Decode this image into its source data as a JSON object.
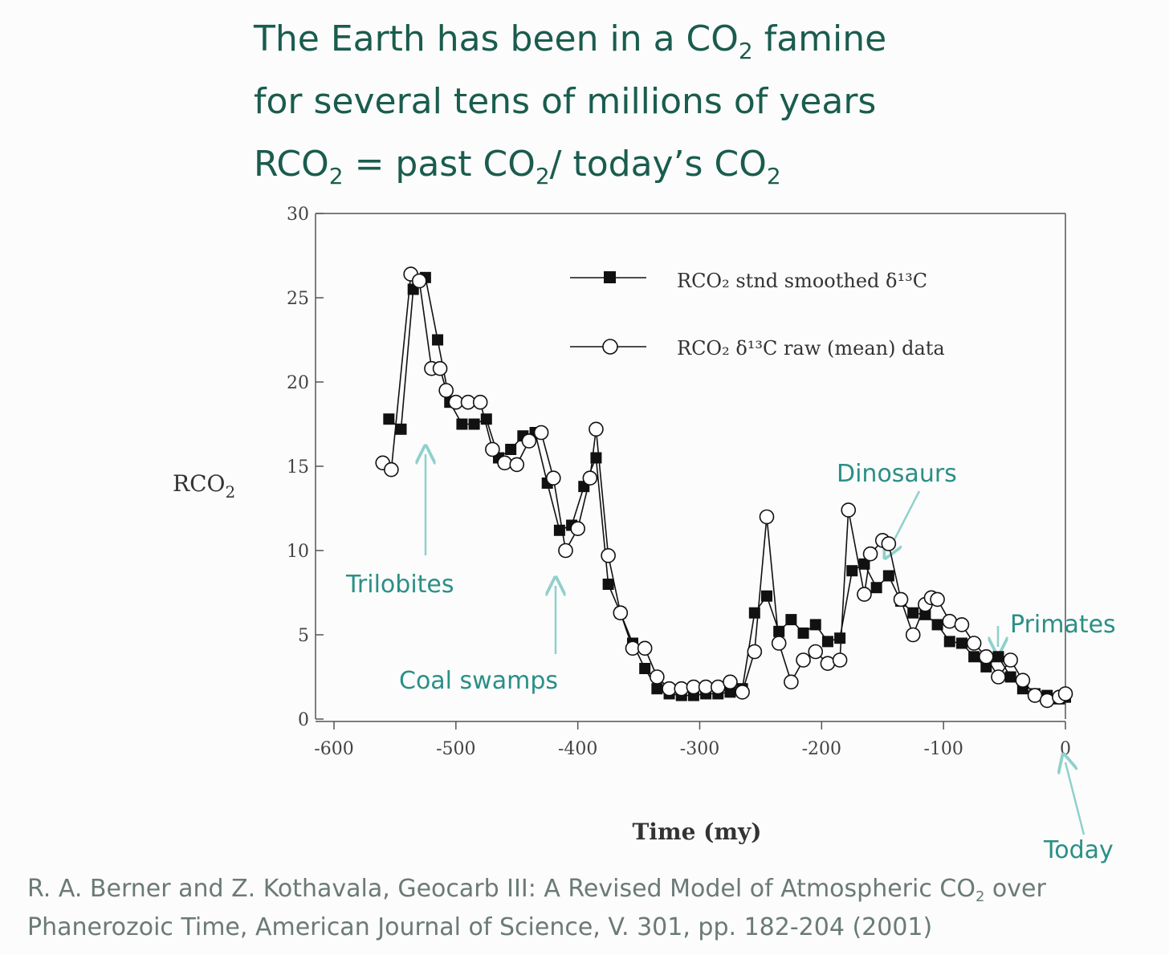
{
  "slide": {
    "title_line1_a": "The Earth has been in a CO",
    "title_line1_sub": "2",
    "title_line1_b": " famine",
    "title_line2": "for several tens of millions of years",
    "title_line3_a": "RCO",
    "title_line3_sub1": "2",
    "title_line3_b": " = past CO",
    "title_line3_sub2": "2",
    "title_line3_c": "/ today’s CO",
    "title_line3_sub3": "2",
    "citation_line1_a": "R. A. Berner and Z. Kothavala, Geocarb III: A Revised Model of Atmospheric CO",
    "citation_line1_sub": "2",
    "citation_line1_b": " over",
    "citation_line2": "Phanerozoic Time,  American Journal of Science, V. 301, pp. 182-204 (2001)"
  },
  "colors": {
    "title": "#1a5c4e",
    "annotation": "#2a8f87",
    "arrow": "#8fd0cc",
    "axis": "#555555",
    "data": "#111111"
  },
  "chart_data": {
    "type": "line",
    "xlabel": "Time  (my)",
    "ylabel": "RCO",
    "ylabel_sub": "2",
    "xlim": [
      -600,
      0
    ],
    "ylim": [
      0,
      30
    ],
    "x_ticks": [
      -600,
      -500,
      -400,
      -300,
      -200,
      -100,
      0
    ],
    "x_tick_labels": [
      "-600",
      "-500",
      "-400",
      "-300",
      "-200",
      "-100",
      "0"
    ],
    "y_ticks": [
      0,
      5,
      10,
      15,
      20,
      25,
      30
    ],
    "y_tick_labels": [
      "0",
      "5",
      "10",
      "15",
      "20",
      "25",
      "30"
    ],
    "grid": false,
    "legend_position": "top-right",
    "series": [
      {
        "name": "RCO₂ stnd smoothed δ¹³C",
        "marker": "filled-square",
        "x": [
          -555,
          -545,
          -535,
          -525,
          -515,
          -505,
          -495,
          -485,
          -475,
          -465,
          -455,
          -445,
          -435,
          -425,
          -415,
          -405,
          -395,
          -385,
          -375,
          -365,
          -355,
          -345,
          -335,
          -325,
          -315,
          -305,
          -295,
          -285,
          -275,
          -265,
          -255,
          -245,
          -235,
          -225,
          -215,
          -205,
          -195,
          -185,
          -175,
          -165,
          -155,
          -145,
          -135,
          -125,
          -115,
          -105,
          -95,
          -85,
          -75,
          -65,
          -55,
          -45,
          -35,
          -25,
          -15,
          -5,
          0
        ],
        "y": [
          17.8,
          17.2,
          25.5,
          26.2,
          22.5,
          18.8,
          17.5,
          17.5,
          17.8,
          15.5,
          16.0,
          16.8,
          17.0,
          14.0,
          11.2,
          11.5,
          13.8,
          15.5,
          8.0,
          6.3,
          4.5,
          3.0,
          1.8,
          1.5,
          1.4,
          1.4,
          1.5,
          1.5,
          1.6,
          1.8,
          6.3,
          7.3,
          5.2,
          5.9,
          5.1,
          5.6,
          4.6,
          4.8,
          8.8,
          9.2,
          7.8,
          8.5,
          7.0,
          6.3,
          6.2,
          5.6,
          4.6,
          4.5,
          3.7,
          3.1,
          3.7,
          2.5,
          1.8,
          1.5,
          1.4,
          1.2,
          1.3
        ]
      },
      {
        "name": "RCO₂ δ¹³C raw (mean) data",
        "marker": "open-circle",
        "x": [
          -560,
          -553,
          -537,
          -530,
          -520,
          -513,
          -508,
          -500,
          -490,
          -480,
          -470,
          -460,
          -450,
          -440,
          -430,
          -420,
          -410,
          -400,
          -390,
          -385,
          -375,
          -365,
          -355,
          -345,
          -335,
          -325,
          -315,
          -305,
          -295,
          -285,
          -275,
          -265,
          -255,
          -245,
          -235,
          -225,
          -215,
          -205,
          -195,
          -185,
          -178,
          -165,
          -160,
          -150,
          -145,
          -135,
          -125,
          -115,
          -110,
          -105,
          -95,
          -85,
          -75,
          -65,
          -55,
          -45,
          -35,
          -25,
          -15,
          -5,
          0
        ],
        "y": [
          15.2,
          14.8,
          26.4,
          26.0,
          20.8,
          20.8,
          19.5,
          18.8,
          18.8,
          18.8,
          16.0,
          15.2,
          15.1,
          16.5,
          17.0,
          14.3,
          10.0,
          11.3,
          14.3,
          17.2,
          9.7,
          6.3,
          4.2,
          4.2,
          2.5,
          1.8,
          1.8,
          1.9,
          1.9,
          1.9,
          2.2,
          1.6,
          4.0,
          12.0,
          4.5,
          2.2,
          3.5,
          4.0,
          3.3,
          3.5,
          12.4,
          7.4,
          9.8,
          10.6,
          10.4,
          7.1,
          5.0,
          6.8,
          7.2,
          7.1,
          5.8,
          5.6,
          4.5,
          3.7,
          2.5,
          3.5,
          2.3,
          1.4,
          1.1,
          1.3,
          1.5
        ]
      }
    ],
    "annotations": [
      {
        "text": "Trilobites",
        "points_to": [
          -530,
          16
        ]
      },
      {
        "text": "Coal swamps",
        "points_to": [
          -420,
          8
        ]
      },
      {
        "text": "Dinosaurs",
        "points_to": [
          -145,
          10.5
        ]
      },
      {
        "text": "Primates",
        "points_to": [
          -55,
          4.3
        ]
      },
      {
        "text": "Today",
        "points_to": [
          0,
          -3
        ]
      }
    ]
  }
}
